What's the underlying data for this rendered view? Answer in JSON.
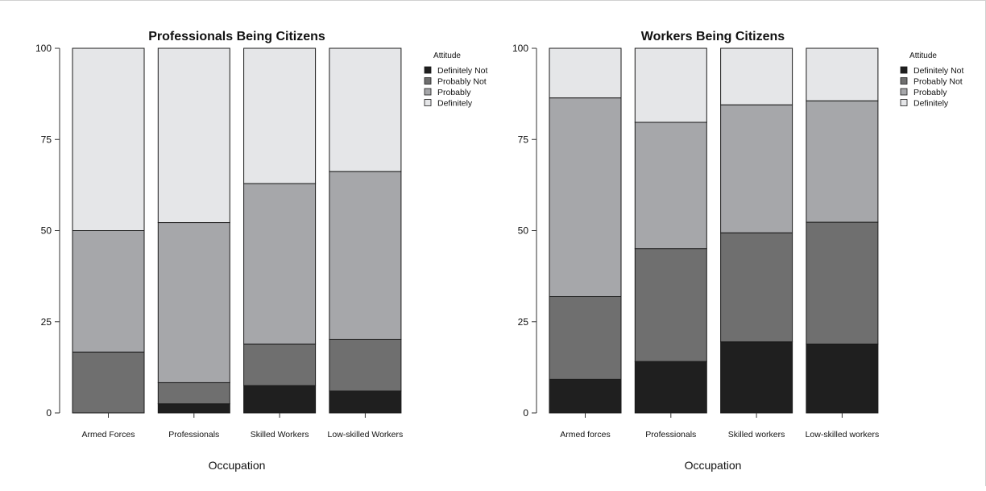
{
  "chart_data": [
    {
      "type": "bar",
      "stacked": true,
      "title": "Professionals Being Citizens",
      "xlabel": "Occupation",
      "ylabel": "",
      "ylim": [
        0,
        100
      ],
      "yticks": [
        0,
        25,
        50,
        75,
        100
      ],
      "grid": false,
      "legend_title": "Attitude",
      "legend_position": "right",
      "categories": [
        "Armed Forces",
        "Professionals",
        "Skilled Workers",
        "Low-skilled Workers"
      ],
      "series": [
        {
          "name": "Definitely Not",
          "color": "#1f1f1f",
          "values": [
            0,
            2.5,
            7.5,
            6
          ]
        },
        {
          "name": "Probably Not",
          "color": "#6f6f6f",
          "values": [
            16.7,
            5.8,
            11.4,
            14.2
          ]
        },
        {
          "name": "Probably",
          "color": "#a6a7aa",
          "values": [
            33.3,
            43.9,
            44.0,
            46.0
          ]
        },
        {
          "name": "Definitely",
          "color": "#e5e6e8",
          "values": [
            50.0,
            47.8,
            37.1,
            33.8
          ]
        }
      ]
    },
    {
      "type": "bar",
      "stacked": true,
      "title": "Workers Being Citizens",
      "xlabel": "Occupation",
      "ylabel": "",
      "ylim": [
        0,
        100
      ],
      "yticks": [
        0,
        25,
        50,
        75,
        100
      ],
      "grid": false,
      "legend_title": "Attitude",
      "legend_position": "right",
      "categories": [
        "Armed forces",
        "Professionals",
        "Skilled workers",
        "Low-skilled workers"
      ],
      "series": [
        {
          "name": "Definitely Not",
          "color": "#1f1f1f",
          "values": [
            9.2,
            14.1,
            19.5,
            18.9
          ]
        },
        {
          "name": "Probably Not",
          "color": "#6f6f6f",
          "values": [
            22.7,
            31.0,
            29.9,
            33.4
          ]
        },
        {
          "name": "Probably",
          "color": "#a6a7aa",
          "values": [
            54.5,
            34.6,
            35.1,
            33.3
          ]
        },
        {
          "name": "Definitely",
          "color": "#e5e6e8",
          "values": [
            13.6,
            20.3,
            15.5,
            14.4
          ]
        }
      ]
    }
  ]
}
